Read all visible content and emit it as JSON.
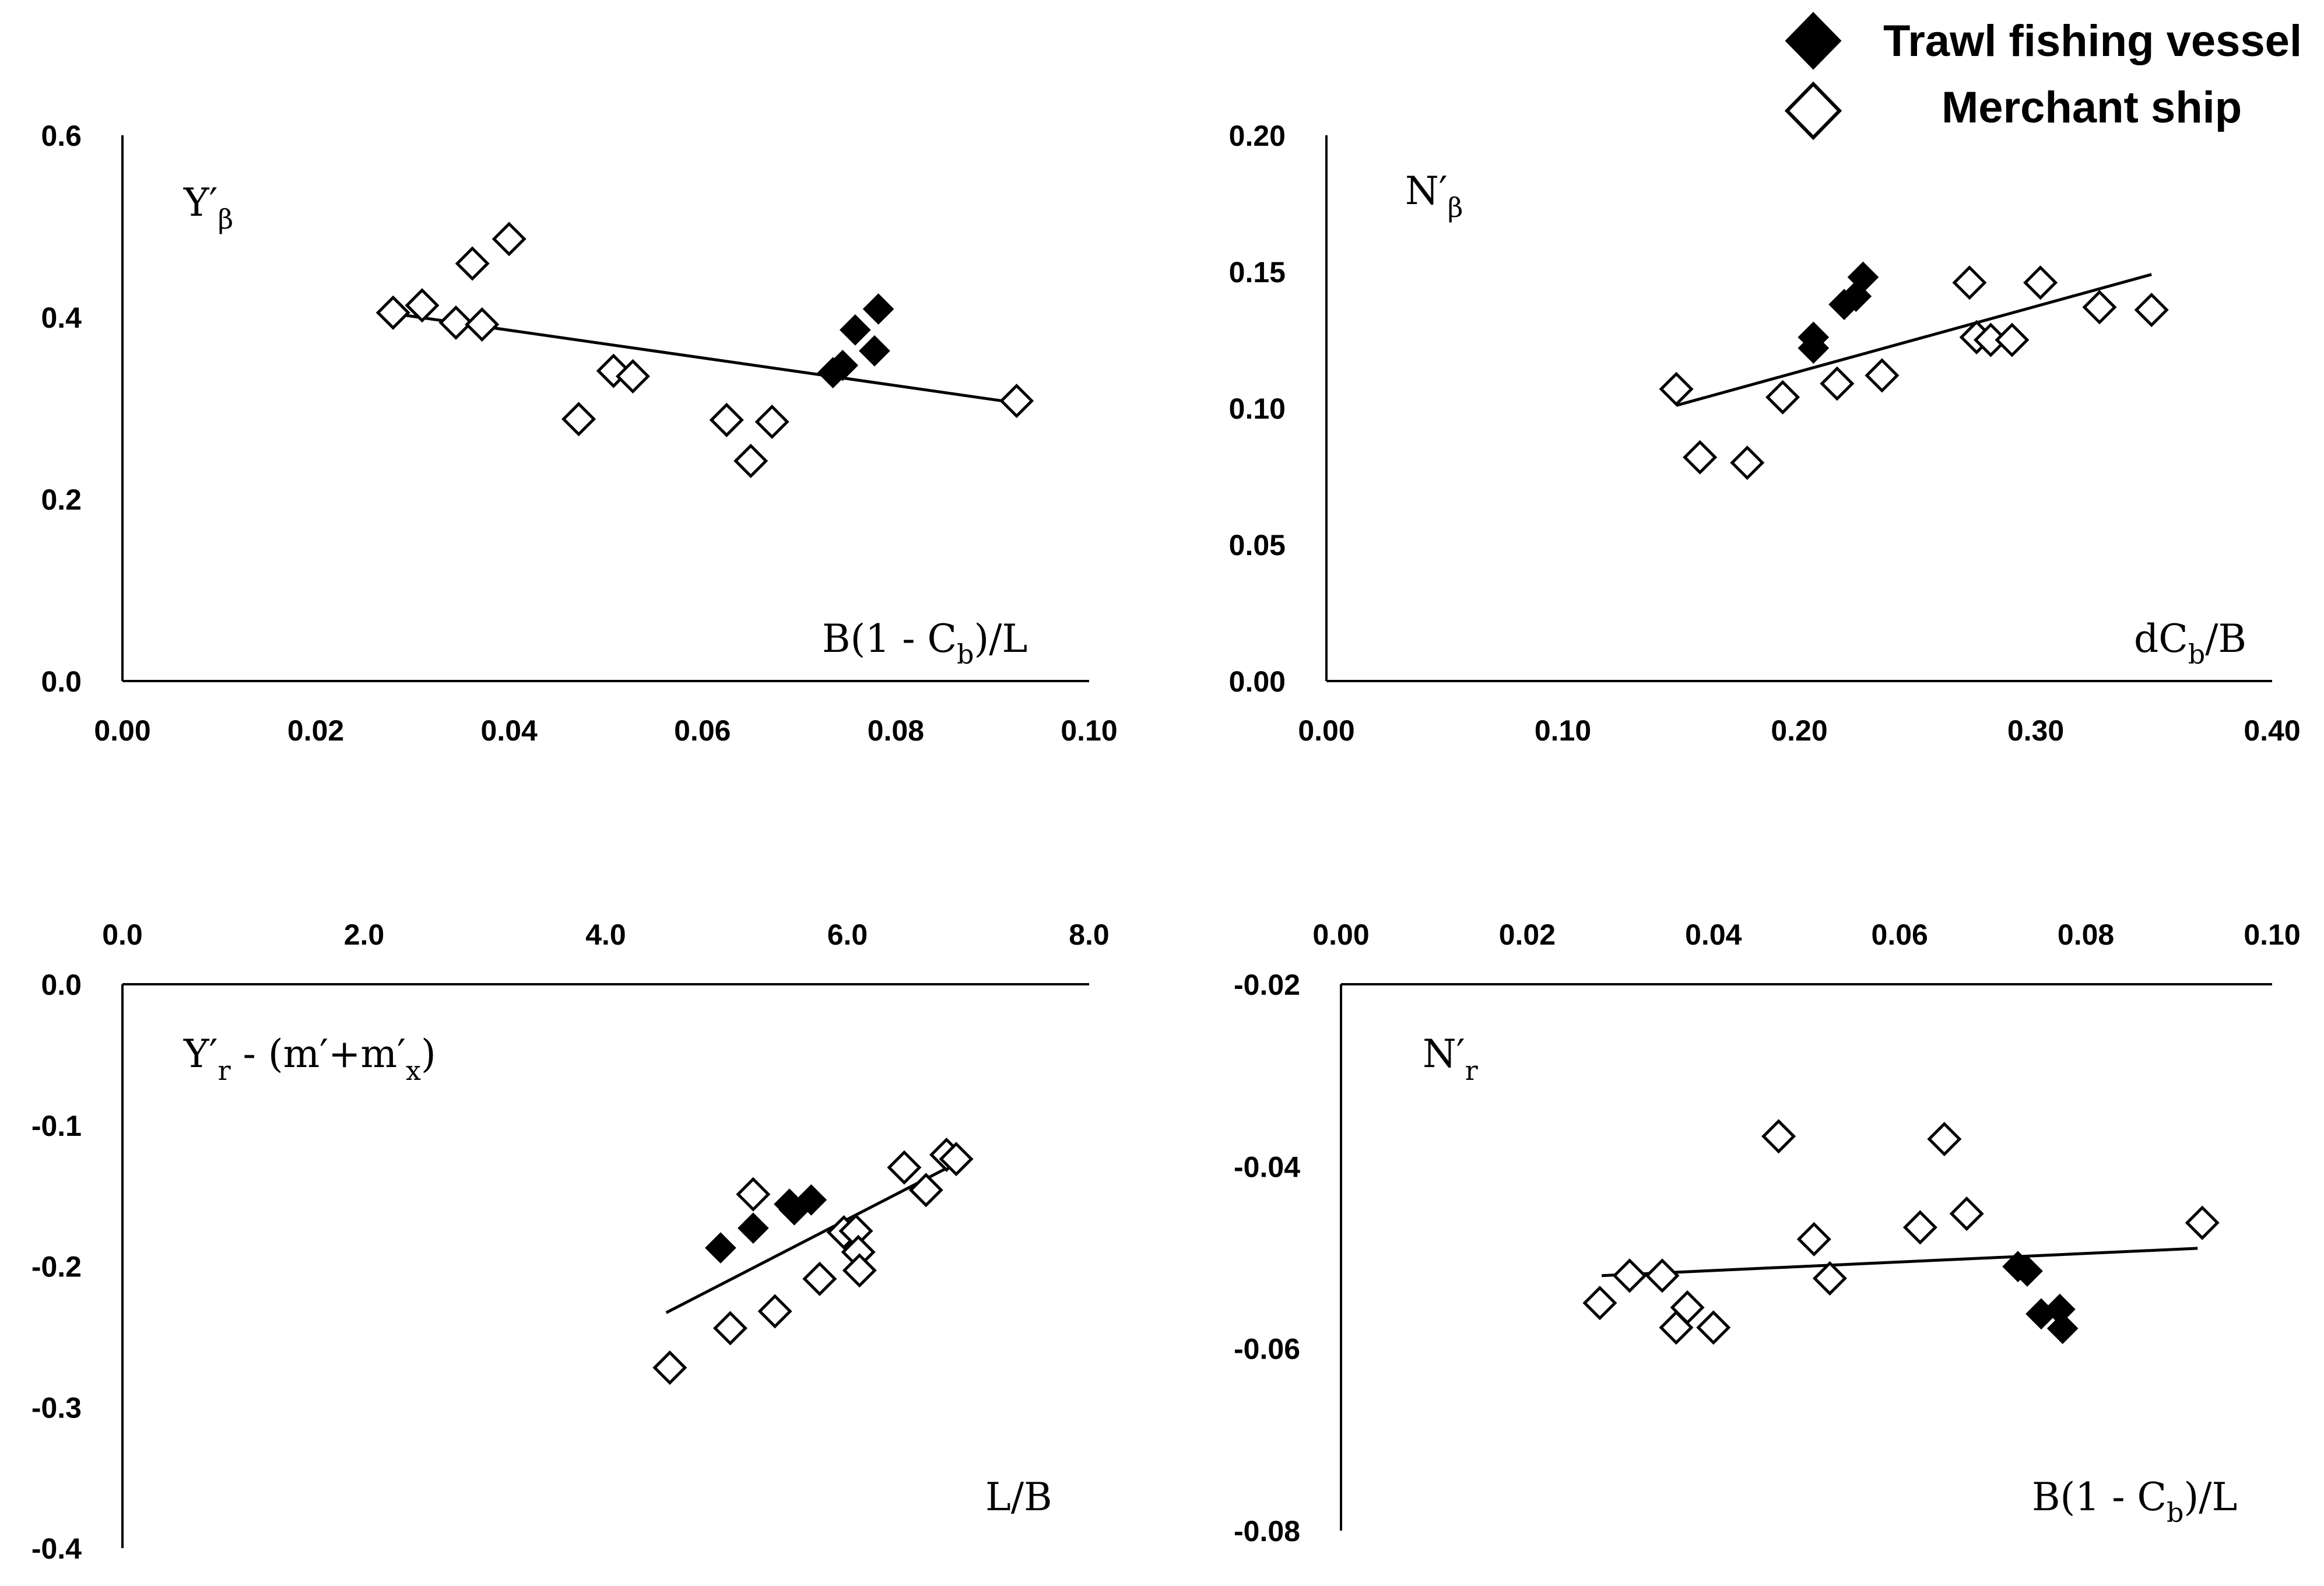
{
  "legend": {
    "trawl": {
      "label": "Trawl fishing vessel",
      "color": "#000000"
    },
    "merchant": {
      "label": "Merchant ship",
      "color": "#ffffff"
    }
  },
  "chart_data": [
    {
      "type": "scatter",
      "id": "p1",
      "y_label": {
        "main": "Y",
        "sup": "′",
        "sub": "β",
        "tail": ""
      },
      "x_label": {
        "pre": "B(1 - C",
        "sub": "b",
        "post": ")/L"
      },
      "xlim": [
        0,
        0.1
      ],
      "ylim": [
        0,
        0.6
      ],
      "x_ticks": [
        0,
        0.02,
        0.04,
        0.06,
        0.08,
        0.1
      ],
      "x_tick_labels": [
        "0.00",
        "0.02",
        "0.04",
        "0.06",
        "0.08",
        "0.10"
      ],
      "y_ticks": [
        0,
        0.2,
        0.4,
        0.6
      ],
      "y_tick_labels": [
        "0.0",
        "0.2",
        "0.4",
        "0.6"
      ],
      "trend": [
        [
          0.028,
          0.404
        ],
        [
          0.093,
          0.305
        ]
      ],
      "series": [
        {
          "name": "Trawl fishing vessel",
          "filled": true,
          "points": [
            [
              0.0735,
              0.339
            ],
            [
              0.0745,
              0.347
            ],
            [
              0.0758,
              0.386
            ],
            [
              0.0778,
              0.363
            ],
            [
              0.0782,
              0.409
            ]
          ]
        },
        {
          "name": "Merchant ship",
          "filled": false,
          "points": [
            [
              0.028,
              0.405
            ],
            [
              0.031,
              0.413
            ],
            [
              0.0345,
              0.394
            ],
            [
              0.0362,
              0.459
            ],
            [
              0.0372,
              0.392
            ],
            [
              0.04,
              0.486
            ],
            [
              0.0472,
              0.288
            ],
            [
              0.0508,
              0.341
            ],
            [
              0.0528,
              0.335
            ],
            [
              0.0625,
              0.287
            ],
            [
              0.065,
              0.242
            ],
            [
              0.0672,
              0.285
            ],
            [
              0.0925,
              0.308
            ]
          ]
        }
      ]
    },
    {
      "type": "scatter",
      "id": "p2",
      "y_label": {
        "main": "N",
        "sup": "′",
        "sub": "β",
        "tail": ""
      },
      "x_label": {
        "pre": "dC",
        "sub": "b",
        "post": "/B"
      },
      "xlim": [
        0,
        0.4
      ],
      "ylim": [
        0,
        0.2
      ],
      "x_ticks": [
        0,
        0.1,
        0.2,
        0.3,
        0.4
      ],
      "x_tick_labels": [
        "0.00",
        "0.10",
        "0.20",
        "0.30",
        "0.40"
      ],
      "y_ticks": [
        0,
        0.05,
        0.1,
        0.15,
        0.2
      ],
      "y_tick_labels": [
        "0.00",
        "0.05",
        "0.10",
        "0.15",
        "0.20"
      ],
      "trend": [
        [
          0.148,
          0.101
        ],
        [
          0.349,
          0.149
        ]
      ],
      "series": [
        {
          "name": "Trawl fishing vessel",
          "filled": true,
          "points": [
            [
              0.206,
              0.122
            ],
            [
              0.206,
              0.126
            ],
            [
              0.219,
              0.138
            ],
            [
              0.224,
              0.141
            ],
            [
              0.227,
              0.148
            ]
          ]
        },
        {
          "name": "Merchant ship",
          "filled": false,
          "points": [
            [
              0.148,
              0.107
            ],
            [
              0.158,
              0.082
            ],
            [
              0.178,
              0.08
            ],
            [
              0.193,
              0.104
            ],
            [
              0.216,
              0.109
            ],
            [
              0.235,
              0.112
            ],
            [
              0.272,
              0.146
            ],
            [
              0.275,
              0.126
            ],
            [
              0.281,
              0.125
            ],
            [
              0.29,
              0.125
            ],
            [
              0.302,
              0.146
            ],
            [
              0.327,
              0.137
            ],
            [
              0.349,
              0.136
            ]
          ]
        }
      ]
    },
    {
      "type": "scatter",
      "id": "p3",
      "y_label": {
        "main": "Y",
        "sup": "′",
        "sub": "r",
        "tail": " - (m′+m′",
        "tail_sub": "x",
        "tail_end": ")"
      },
      "x_label": {
        "pre": "L/B",
        "sub": "",
        "post": ""
      },
      "xlim": [
        0,
        8.0
      ],
      "ylim": [
        -0.4,
        0.0
      ],
      "x_axis_position": "top",
      "x_ticks": [
        0,
        2,
        4,
        6,
        8
      ],
      "x_tick_labels": [
        "0.0",
        "2.0",
        "4.0",
        "6.0",
        "8.0"
      ],
      "y_ticks": [
        0,
        -0.1,
        -0.2,
        -0.3,
        -0.4
      ],
      "y_tick_labels": [
        "0.0",
        "-0.1",
        "-0.2",
        "-0.3",
        "-0.4"
      ],
      "trend": [
        [
          4.5,
          -0.233
        ],
        [
          6.9,
          -0.127
        ]
      ],
      "series": [
        {
          "name": "Trawl fishing vessel",
          "filled": true,
          "points": [
            [
              4.95,
              -0.187
            ],
            [
              5.22,
              -0.173
            ],
            [
              5.52,
              -0.156
            ],
            [
              5.56,
              -0.16
            ],
            [
              5.7,
              -0.153
            ]
          ]
        },
        {
          "name": "Merchant ship",
          "filled": false,
          "points": [
            [
              4.53,
              -0.272
            ],
            [
              5.03,
              -0.244
            ],
            [
              5.22,
              -0.149
            ],
            [
              5.4,
              -0.232
            ],
            [
              5.77,
              -0.209
            ],
            [
              5.97,
              -0.176
            ],
            [
              6.07,
              -0.175
            ],
            [
              6.09,
              -0.19
            ],
            [
              6.1,
              -0.203
            ],
            [
              6.47,
              -0.13
            ],
            [
              6.65,
              -0.146
            ],
            [
              6.82,
              -0.121
            ],
            [
              6.9,
              -0.124
            ]
          ]
        }
      ]
    },
    {
      "type": "scatter",
      "id": "p4",
      "y_label": {
        "main": "N",
        "sup": "′",
        "sub": "r",
        "tail": ""
      },
      "x_label": {
        "pre": "B(1 - C",
        "sub": "b",
        "post": ")/L"
      },
      "xlim": [
        0,
        0.1
      ],
      "ylim": [
        -0.08,
        -0.02
      ],
      "x_axis_position": "top",
      "x_ticks": [
        0,
        0.02,
        0.04,
        0.06,
        0.08,
        0.1
      ],
      "x_tick_labels": [
        "0.00",
        "0.02",
        "0.04",
        "0.06",
        "0.08",
        "0.10"
      ],
      "y_ticks": [
        -0.02,
        -0.04,
        -0.06,
        -0.08
      ],
      "y_tick_labels": [
        "-0.02",
        "-0.04",
        "-0.06",
        "-0.08"
      ],
      "trend": [
        [
          0.028,
          -0.052
        ],
        [
          0.092,
          -0.049
        ]
      ],
      "series": [
        {
          "name": "Trawl fishing vessel",
          "filled": true,
          "points": [
            [
              0.0727,
              -0.051
            ],
            [
              0.0737,
              -0.0515
            ],
            [
              0.0752,
              -0.0562
            ],
            [
              0.0772,
              -0.0557
            ],
            [
              0.0775,
              -0.0578
            ]
          ]
        },
        {
          "name": "Merchant ship",
          "filled": false,
          "points": [
            [
              0.0278,
              -0.055
            ],
            [
              0.031,
              -0.052
            ],
            [
              0.0345,
              -0.052
            ],
            [
              0.036,
              -0.0577
            ],
            [
              0.0372,
              -0.0555
            ],
            [
              0.04,
              -0.0577
            ],
            [
              0.047,
              -0.0367
            ],
            [
              0.0508,
              -0.048
            ],
            [
              0.0525,
              -0.0523
            ],
            [
              0.0622,
              -0.0467
            ],
            [
              0.0648,
              -0.037
            ],
            [
              0.0672,
              -0.0452
            ],
            [
              0.0925,
              -0.0462
            ]
          ]
        }
      ]
    }
  ]
}
